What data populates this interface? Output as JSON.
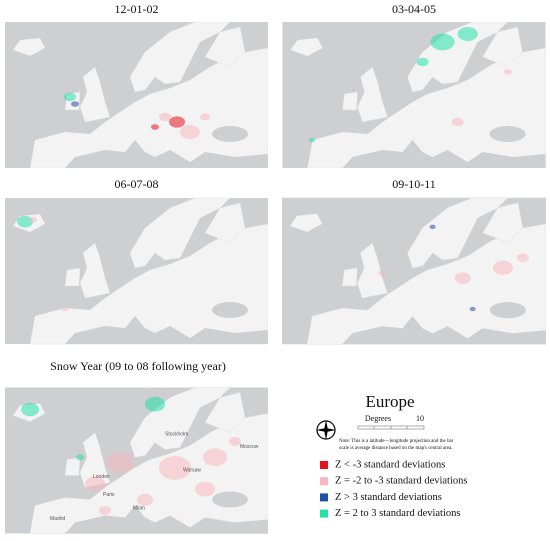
{
  "panels": [
    {
      "title": "12-01-02"
    },
    {
      "title": "03-04-05"
    },
    {
      "title": "06-07-08"
    },
    {
      "title": "09-10-11"
    },
    {
      "title": "Snow Year  (09 to 08 following year)",
      "cities": [
        "London",
        "Paris",
        "Madrid",
        "Milan",
        "Warsaw",
        "Stockholm",
        "Moscow"
      ]
    }
  ],
  "legend": {
    "title": "Europe",
    "scale_label": "Degrees",
    "scale_value": "10",
    "note": [
      "Note: This is a latitude—longitude projection and the bar",
      "scale is average distance based on the map's central area."
    ],
    "items": [
      {
        "label": "Z < -3 standard deviations",
        "color": "#e8101a"
      },
      {
        "label": "Z = -2 to -3 standard deviations",
        "color": "#f7b8bd"
      },
      {
        "label": "Z > 3 standard deviations",
        "color": "#1f4fa8"
      },
      {
        "label": "Z = 2 to 3 standard deviations",
        "color": "#25e0a8"
      }
    ]
  }
}
